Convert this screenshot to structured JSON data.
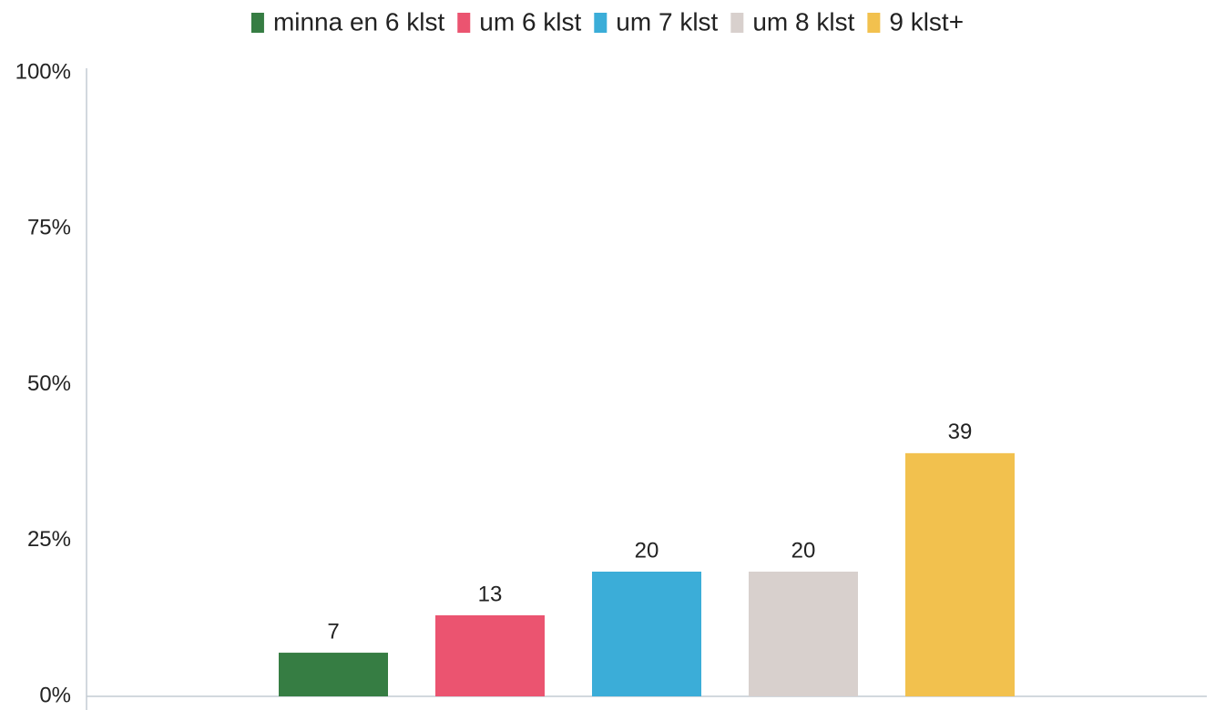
{
  "chart_data": {
    "type": "bar",
    "categories": [
      null
    ],
    "series": [
      {
        "name": "minna en 6 klst",
        "color": "#367d43",
        "values": [
          7
        ]
      },
      {
        "name": "um 6 klst",
        "color": "#eb5470",
        "values": [
          13
        ]
      },
      {
        "name": "um 7 klst",
        "color": "#3badd8",
        "values": [
          20
        ]
      },
      {
        "name": "um 8 klst",
        "color": "#d8d0cd",
        "values": [
          20
        ]
      },
      {
        "name": "9 klst+",
        "color": "#f2c14e",
        "values": [
          39
        ]
      }
    ],
    "ylim": [
      0,
      100
    ],
    "yticks": [
      {
        "value": 0,
        "label": "0%"
      },
      {
        "value": 25,
        "label": "25%"
      },
      {
        "value": 50,
        "label": "50%"
      },
      {
        "value": 75,
        "label": "75%"
      },
      {
        "value": 100,
        "label": "100%"
      }
    ],
    "grid": false,
    "legend": "top"
  }
}
